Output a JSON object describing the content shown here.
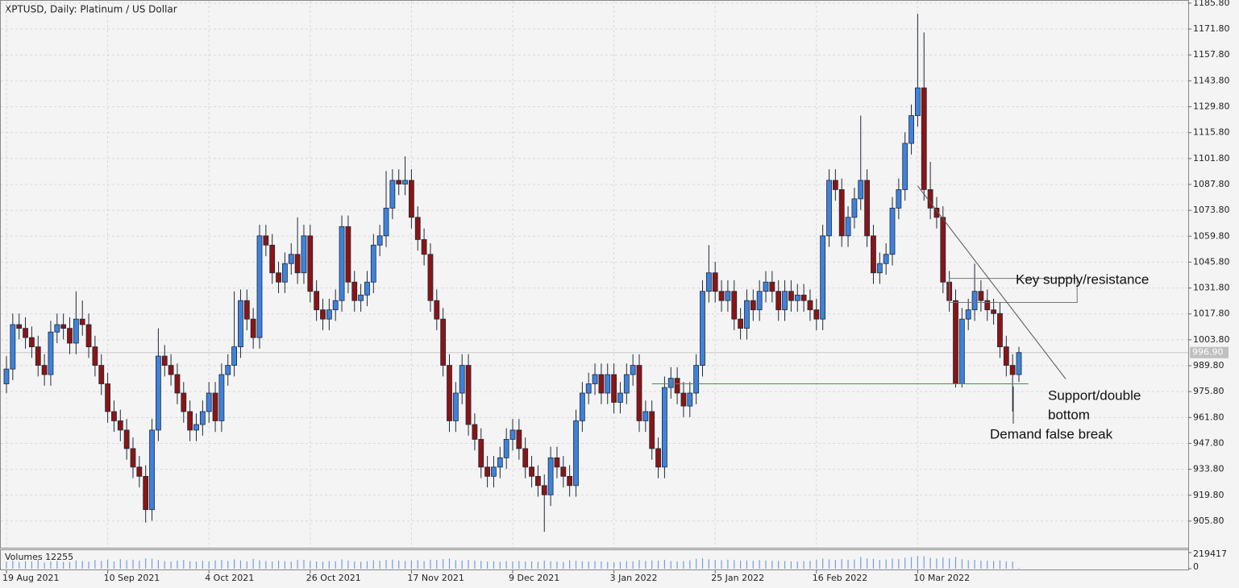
{
  "chart_data": {
    "type": "candlestick",
    "title": "XPTUSD, Daily:  Platinum / US Dollar",
    "categories": [
      "19 Aug 2021",
      null,
      null,
      null,
      null,
      null,
      null,
      null,
      null,
      null,
      null,
      null,
      null,
      null,
      null,
      null,
      "10 Sep 2021",
      null,
      null,
      null,
      null,
      null,
      null,
      null,
      null,
      null,
      null,
      null,
      null,
      null,
      null,
      null,
      "4 Oct 2021",
      null,
      null,
      null,
      null,
      null,
      null,
      null,
      null,
      null,
      null,
      null,
      null,
      null,
      null,
      null,
      "26 Oct 2021",
      null,
      null,
      null,
      null,
      null,
      null,
      null,
      null,
      null,
      null,
      null,
      null,
      null,
      null,
      null,
      "17 Nov 2021",
      null,
      null,
      null,
      null,
      null,
      null,
      null,
      null,
      null,
      null,
      null,
      null,
      null,
      null,
      null,
      "9 Dec 2021",
      null,
      null,
      null,
      null,
      null,
      null,
      null,
      null,
      null,
      null,
      null,
      null,
      null,
      null,
      null,
      "3 Jan 2022",
      null,
      null,
      null,
      null,
      null,
      null,
      null,
      null,
      null,
      null,
      null,
      null,
      null,
      null,
      null,
      "25 Jan 2022",
      null,
      null,
      null,
      null,
      null,
      null,
      null,
      null,
      null,
      null,
      null,
      null,
      null,
      null,
      null,
      "16 Feb 2022",
      null,
      null,
      null,
      null,
      null,
      null,
      null,
      null,
      null,
      null,
      null,
      null,
      null,
      null,
      null,
      "10 Mar 2022",
      null,
      null,
      null,
      null,
      null,
      null,
      null,
      null,
      null,
      null,
      null,
      null,
      null,
      null,
      null,
      null
    ],
    "ohlc": [
      [
        980,
        995,
        975,
        988
      ],
      [
        988,
        1018,
        982,
        1012
      ],
      [
        1012,
        1018,
        1004,
        1010
      ],
      [
        1010,
        1016,
        999,
        1005
      ],
      [
        1005,
        1011,
        994,
        1000
      ],
      [
        1000,
        1006,
        984,
        990
      ],
      [
        990,
        996,
        979,
        985
      ],
      [
        985,
        1014,
        979,
        1008
      ],
      [
        1008,
        1018,
        1002,
        1012
      ],
      [
        1012,
        1018,
        1004,
        1010
      ],
      [
        1010,
        1016,
        996,
        1002
      ],
      [
        1002,
        1030,
        996,
        1015
      ],
      [
        1015,
        1025,
        1006,
        1012
      ],
      [
        1012,
        1018,
        994,
        1000
      ],
      [
        1000,
        1006,
        984,
        990
      ],
      [
        990,
        996,
        974,
        980
      ],
      [
        980,
        986,
        959,
        965
      ],
      [
        965,
        971,
        954,
        960
      ],
      [
        960,
        966,
        949,
        955
      ],
      [
        955,
        961,
        939,
        945
      ],
      [
        945,
        951,
        929,
        935
      ],
      [
        935,
        941,
        924,
        930
      ],
      [
        930,
        936,
        905,
        912
      ],
      [
        912,
        961,
        906,
        955
      ],
      [
        955,
        1010,
        949,
        995
      ],
      [
        995,
        1001,
        984,
        990
      ],
      [
        990,
        996,
        979,
        985
      ],
      [
        985,
        991,
        969,
        975
      ],
      [
        975,
        981,
        959,
        965
      ],
      [
        965,
        971,
        949,
        955
      ],
      [
        955,
        964,
        949,
        958
      ],
      [
        958,
        971,
        952,
        965
      ],
      [
        965,
        981,
        959,
        975
      ],
      [
        975,
        981,
        954,
        960
      ],
      [
        960,
        991,
        954,
        985
      ],
      [
        985,
        996,
        979,
        990
      ],
      [
        990,
        1030,
        984,
        1000
      ],
      [
        1000,
        1031,
        994,
        1025
      ],
      [
        1025,
        1031,
        1009,
        1015
      ],
      [
        1015,
        1021,
        999,
        1005
      ],
      [
        1005,
        1066,
        999,
        1060
      ],
      [
        1060,
        1066,
        1049,
        1055
      ],
      [
        1055,
        1061,
        1034,
        1040
      ],
      [
        1040,
        1046,
        1029,
        1035
      ],
      [
        1035,
        1051,
        1029,
        1045
      ],
      [
        1045,
        1056,
        1039,
        1050
      ],
      [
        1050,
        1070,
        1034,
        1040
      ],
      [
        1040,
        1066,
        1034,
        1060
      ],
      [
        1060,
        1066,
        1024,
        1030
      ],
      [
        1030,
        1036,
        1014,
        1020
      ],
      [
        1020,
        1026,
        1009,
        1015
      ],
      [
        1015,
        1026,
        1009,
        1020
      ],
      [
        1020,
        1031,
        1014,
        1025
      ],
      [
        1025,
        1071,
        1019,
        1065
      ],
      [
        1065,
        1071,
        1029,
        1035
      ],
      [
        1035,
        1041,
        1019,
        1025
      ],
      [
        1025,
        1034,
        1019,
        1028
      ],
      [
        1028,
        1041,
        1022,
        1035
      ],
      [
        1035,
        1061,
        1029,
        1055
      ],
      [
        1055,
        1066,
        1049,
        1060
      ],
      [
        1060,
        1095,
        1054,
        1075
      ],
      [
        1075,
        1096,
        1069,
        1090
      ],
      [
        1090,
        1096,
        1082,
        1088
      ],
      [
        1088,
        1103,
        1082,
        1090
      ],
      [
        1090,
        1096,
        1064,
        1070
      ],
      [
        1070,
        1076,
        1052,
        1058
      ],
      [
        1058,
        1064,
        1044,
        1050
      ],
      [
        1050,
        1056,
        1019,
        1025
      ],
      [
        1025,
        1031,
        1009,
        1015
      ],
      [
        1015,
        1021,
        984,
        990
      ],
      [
        990,
        996,
        954,
        960
      ],
      [
        960,
        981,
        954,
        975
      ],
      [
        975,
        996,
        969,
        990
      ],
      [
        990,
        996,
        952,
        958
      ],
      [
        958,
        964,
        944,
        950
      ],
      [
        950,
        956,
        929,
        935
      ],
      [
        935,
        941,
        924,
        930
      ],
      [
        930,
        941,
        924,
        935
      ],
      [
        935,
        946,
        929,
        940
      ],
      [
        940,
        956,
        934,
        950
      ],
      [
        950,
        961,
        944,
        955
      ],
      [
        955,
        961,
        939,
        945
      ],
      [
        945,
        951,
        929,
        935
      ],
      [
        935,
        941,
        924,
        930
      ],
      [
        930,
        936,
        919,
        925
      ],
      [
        925,
        931,
        900,
        920
      ],
      [
        920,
        946,
        914,
        940
      ],
      [
        940,
        946,
        929,
        935
      ],
      [
        935,
        941,
        924,
        930
      ],
      [
        930,
        936,
        919,
        925
      ],
      [
        925,
        966,
        919,
        960
      ],
      [
        960,
        981,
        954,
        975
      ],
      [
        975,
        986,
        969,
        980
      ],
      [
        980,
        991,
        974,
        985
      ],
      [
        985,
        991,
        969,
        975
      ],
      [
        975,
        991,
        969,
        985
      ],
      [
        985,
        991,
        964,
        970
      ],
      [
        970,
        981,
        964,
        975
      ],
      [
        975,
        991,
        969,
        985
      ],
      [
        985,
        996,
        979,
        990
      ],
      [
        990,
        996,
        954,
        960
      ],
      [
        960,
        971,
        954,
        965
      ],
      [
        965,
        971,
        939,
        945
      ],
      [
        945,
        951,
        929,
        935
      ],
      [
        935,
        984,
        929,
        978
      ],
      [
        978,
        989,
        972,
        983
      ],
      [
        983,
        989,
        969,
        975
      ],
      [
        975,
        981,
        962,
        968
      ],
      [
        968,
        981,
        962,
        975
      ],
      [
        975,
        996,
        969,
        990
      ],
      [
        990,
        1036,
        984,
        1030
      ],
      [
        1030,
        1055,
        1024,
        1040
      ],
      [
        1040,
        1046,
        1024,
        1030
      ],
      [
        1030,
        1036,
        1019,
        1025
      ],
      [
        1025,
        1036,
        1019,
        1030
      ],
      [
        1030,
        1036,
        1009,
        1015
      ],
      [
        1015,
        1021,
        1004,
        1010
      ],
      [
        1010,
        1031,
        1004,
        1025
      ],
      [
        1025,
        1031,
        1014,
        1020
      ],
      [
        1020,
        1036,
        1014,
        1030
      ],
      [
        1030,
        1041,
        1024,
        1035
      ],
      [
        1035,
        1041,
        1024,
        1030
      ],
      [
        1030,
        1036,
        1014,
        1020
      ],
      [
        1020,
        1036,
        1014,
        1030
      ],
      [
        1030,
        1036,
        1019,
        1025
      ],
      [
        1025,
        1034,
        1019,
        1028
      ],
      [
        1028,
        1034,
        1019,
        1025
      ],
      [
        1025,
        1031,
        1014,
        1020
      ],
      [
        1020,
        1026,
        1009,
        1015
      ],
      [
        1015,
        1066,
        1009,
        1060
      ],
      [
        1060,
        1096,
        1054,
        1090
      ],
      [
        1090,
        1096,
        1079,
        1085
      ],
      [
        1085,
        1091,
        1054,
        1060
      ],
      [
        1060,
        1076,
        1054,
        1070
      ],
      [
        1070,
        1086,
        1064,
        1080
      ],
      [
        1080,
        1125,
        1074,
        1090
      ],
      [
        1090,
        1096,
        1054,
        1060
      ],
      [
        1060,
        1066,
        1034,
        1040
      ],
      [
        1040,
        1051,
        1034,
        1045
      ],
      [
        1045,
        1056,
        1039,
        1050
      ],
      [
        1050,
        1081,
        1044,
        1075
      ],
      [
        1075,
        1091,
        1069,
        1085
      ],
      [
        1085,
        1116,
        1079,
        1110
      ],
      [
        1110,
        1131,
        1104,
        1125
      ],
      [
        1125,
        1180,
        1119,
        1140
      ],
      [
        1140,
        1170,
        1079,
        1085
      ],
      [
        1085,
        1100,
        1069,
        1075
      ],
      [
        1075,
        1081,
        1064,
        1070
      ],
      [
        1070,
        1076,
        1029,
        1035
      ],
      [
        1035,
        1041,
        1019,
        1025
      ],
      [
        1025,
        1031,
        978,
        980
      ],
      [
        980,
        1021,
        978,
        1015
      ],
      [
        1015,
        1026,
        1009,
        1020
      ],
      [
        1020,
        1045,
        1014,
        1030
      ],
      [
        1030,
        1036,
        1019,
        1025
      ],
      [
        1025,
        1031,
        1014,
        1020
      ],
      [
        1020,
        1026,
        1012,
        1018
      ],
      [
        1018,
        1024,
        994,
        1000
      ],
      [
        1000,
        1006,
        984,
        990
      ],
      [
        990,
        996,
        965,
        985
      ],
      [
        985,
        1000,
        981,
        996.9
      ]
    ],
    "colors": {
      "up": "#3f82dc",
      "down": "#8b1414",
      "outline": "#1e2a3a"
    },
    "ylim": [
      891.4,
      1187.5
    ],
    "yticks": [
      {
        "value": 1185.8,
        "label": "1185.80"
      },
      {
        "value": 1171.8,
        "label": "1171.80"
      },
      {
        "value": 1157.8,
        "label": "1157.80"
      },
      {
        "value": 1143.8,
        "label": "1143.80"
      },
      {
        "value": 1129.8,
        "label": "1129.80"
      },
      {
        "value": 1115.8,
        "label": "1115.80"
      },
      {
        "value": 1101.8,
        "label": "1101.80"
      },
      {
        "value": 1087.8,
        "label": "1087.80"
      },
      {
        "value": 1073.8,
        "label": "1073.80"
      },
      {
        "value": 1059.8,
        "label": "1059.80"
      },
      {
        "value": 1045.8,
        "label": "1045.80"
      },
      {
        "value": 1031.8,
        "label": "1031.80"
      },
      {
        "value": 1017.8,
        "label": "1017.80"
      },
      {
        "value": 1003.8,
        "label": "1003.80"
      },
      {
        "value": 989.8,
        "label": "989.80"
      },
      {
        "value": 975.8,
        "label": "975.80"
      },
      {
        "value": 961.8,
        "label": "961.80"
      },
      {
        "value": 947.8,
        "label": "947.80"
      },
      {
        "value": 933.8,
        "label": "933.80"
      },
      {
        "value": 919.8,
        "label": "919.80"
      },
      {
        "value": 905.8,
        "label": "905.80"
      }
    ],
    "grid": true,
    "last_price": {
      "value": 996.9,
      "label": "996.90"
    },
    "support": {
      "x": [
        102,
        161.5
      ],
      "y": 980,
      "color": "#2e9e4a"
    },
    "resistance_zone": {
      "x": [
        149,
        169.2
      ],
      "y": [
        1024,
        1037
      ]
    },
    "trendline": {
      "x": [
        144,
        167.4
      ],
      "y": [
        1087,
        982.6
      ]
    },
    "annotations": [
      "Key supply/resistance",
      "Support/double",
      "bottom",
      "Demand false break"
    ],
    "volume": {
      "label": "Volumes 12255",
      "color": "#6f9fe0",
      "ylim": [
        0,
        219417
      ],
      "yticks": [
        219417,
        0
      ],
      "values": [
        95000,
        110000,
        88000,
        102000,
        97000,
        120000,
        85000,
        99000,
        105000,
        93000,
        90000,
        112000,
        101000,
        96000,
        118000,
        107000,
        125000,
        98000,
        130000,
        115000,
        122000,
        109000,
        140000,
        135000,
        117000,
        104000,
        99000,
        111000,
        120000,
        103000,
        97000,
        108000,
        100000,
        115000,
        119000,
        106000,
        128000,
        112000,
        101000,
        133000,
        114000,
        105000,
        98000,
        109000,
        102000,
        96000,
        118000,
        121000,
        107000,
        99000,
        95000,
        103000,
        100000,
        126000,
        111000,
        97000,
        94000,
        102000,
        115000,
        108000,
        119000,
        124000,
        110000,
        105000,
        113000,
        117000,
        104000,
        122000,
        118000,
        131000,
        138000,
        116000,
        109000,
        120000,
        112000,
        106000,
        98000,
        101000,
        95000,
        103000,
        99000,
        104000,
        97000,
        100000,
        93000,
        110000,
        102000,
        96000,
        91000,
        115000,
        108000,
        101000,
        97000,
        104000,
        99000,
        92000,
        87000,
        95000,
        103000,
        100000,
        118000,
        106000,
        112000,
        109000,
        121000,
        104000,
        98000,
        102000,
        114000,
        135000,
        142000,
        128000,
        119000,
        115000,
        123000,
        117000,
        110000,
        113000,
        108000,
        116000,
        111000,
        107000,
        105000,
        104000,
        100000,
        98000,
        103000,
        106000,
        124000,
        138000,
        127000,
        119000,
        130000,
        121000,
        126000,
        160000,
        140000,
        132000,
        118000,
        125000,
        137000,
        131000,
        150000,
        158000,
        175000,
        170000,
        148000,
        139000,
        152000,
        141000,
        162000,
        128000,
        115000,
        120000,
        110000,
        108000,
        104000,
        112000,
        100000,
        96000,
        12255
      ]
    }
  }
}
